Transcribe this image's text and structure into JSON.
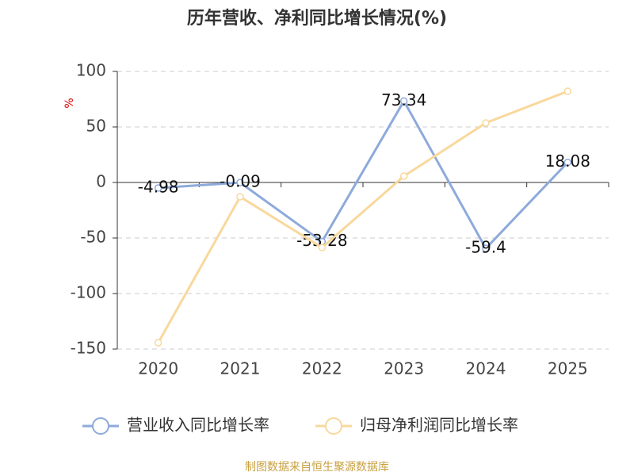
{
  "chart_data": {
    "type": "line",
    "title": "历年营收、净利同比增长情况(%)",
    "y_label": "%",
    "categories": [
      "2020",
      "2021",
      "2022",
      "2023",
      "2024",
      "2025"
    ],
    "series": [
      {
        "name": "营业收入同比增长率",
        "color": "#8eaadb",
        "values": [
          -4.98,
          -0.09,
          -53.28,
          73.34,
          -59.4,
          18.08
        ],
        "show_labels": true
      },
      {
        "name": "归母净利润同比增长率",
        "color": "#f8d89c",
        "values": [
          -144.3,
          -12.9,
          -58.6,
          5.7,
          53.6,
          82.1
        ],
        "show_labels": false
      }
    ],
    "ylim": [
      -150,
      100
    ],
    "yticks": [
      -150,
      -100,
      -50,
      0,
      50,
      100
    ],
    "grid": true,
    "source": "制图数据来自恒生聚源数据库"
  }
}
